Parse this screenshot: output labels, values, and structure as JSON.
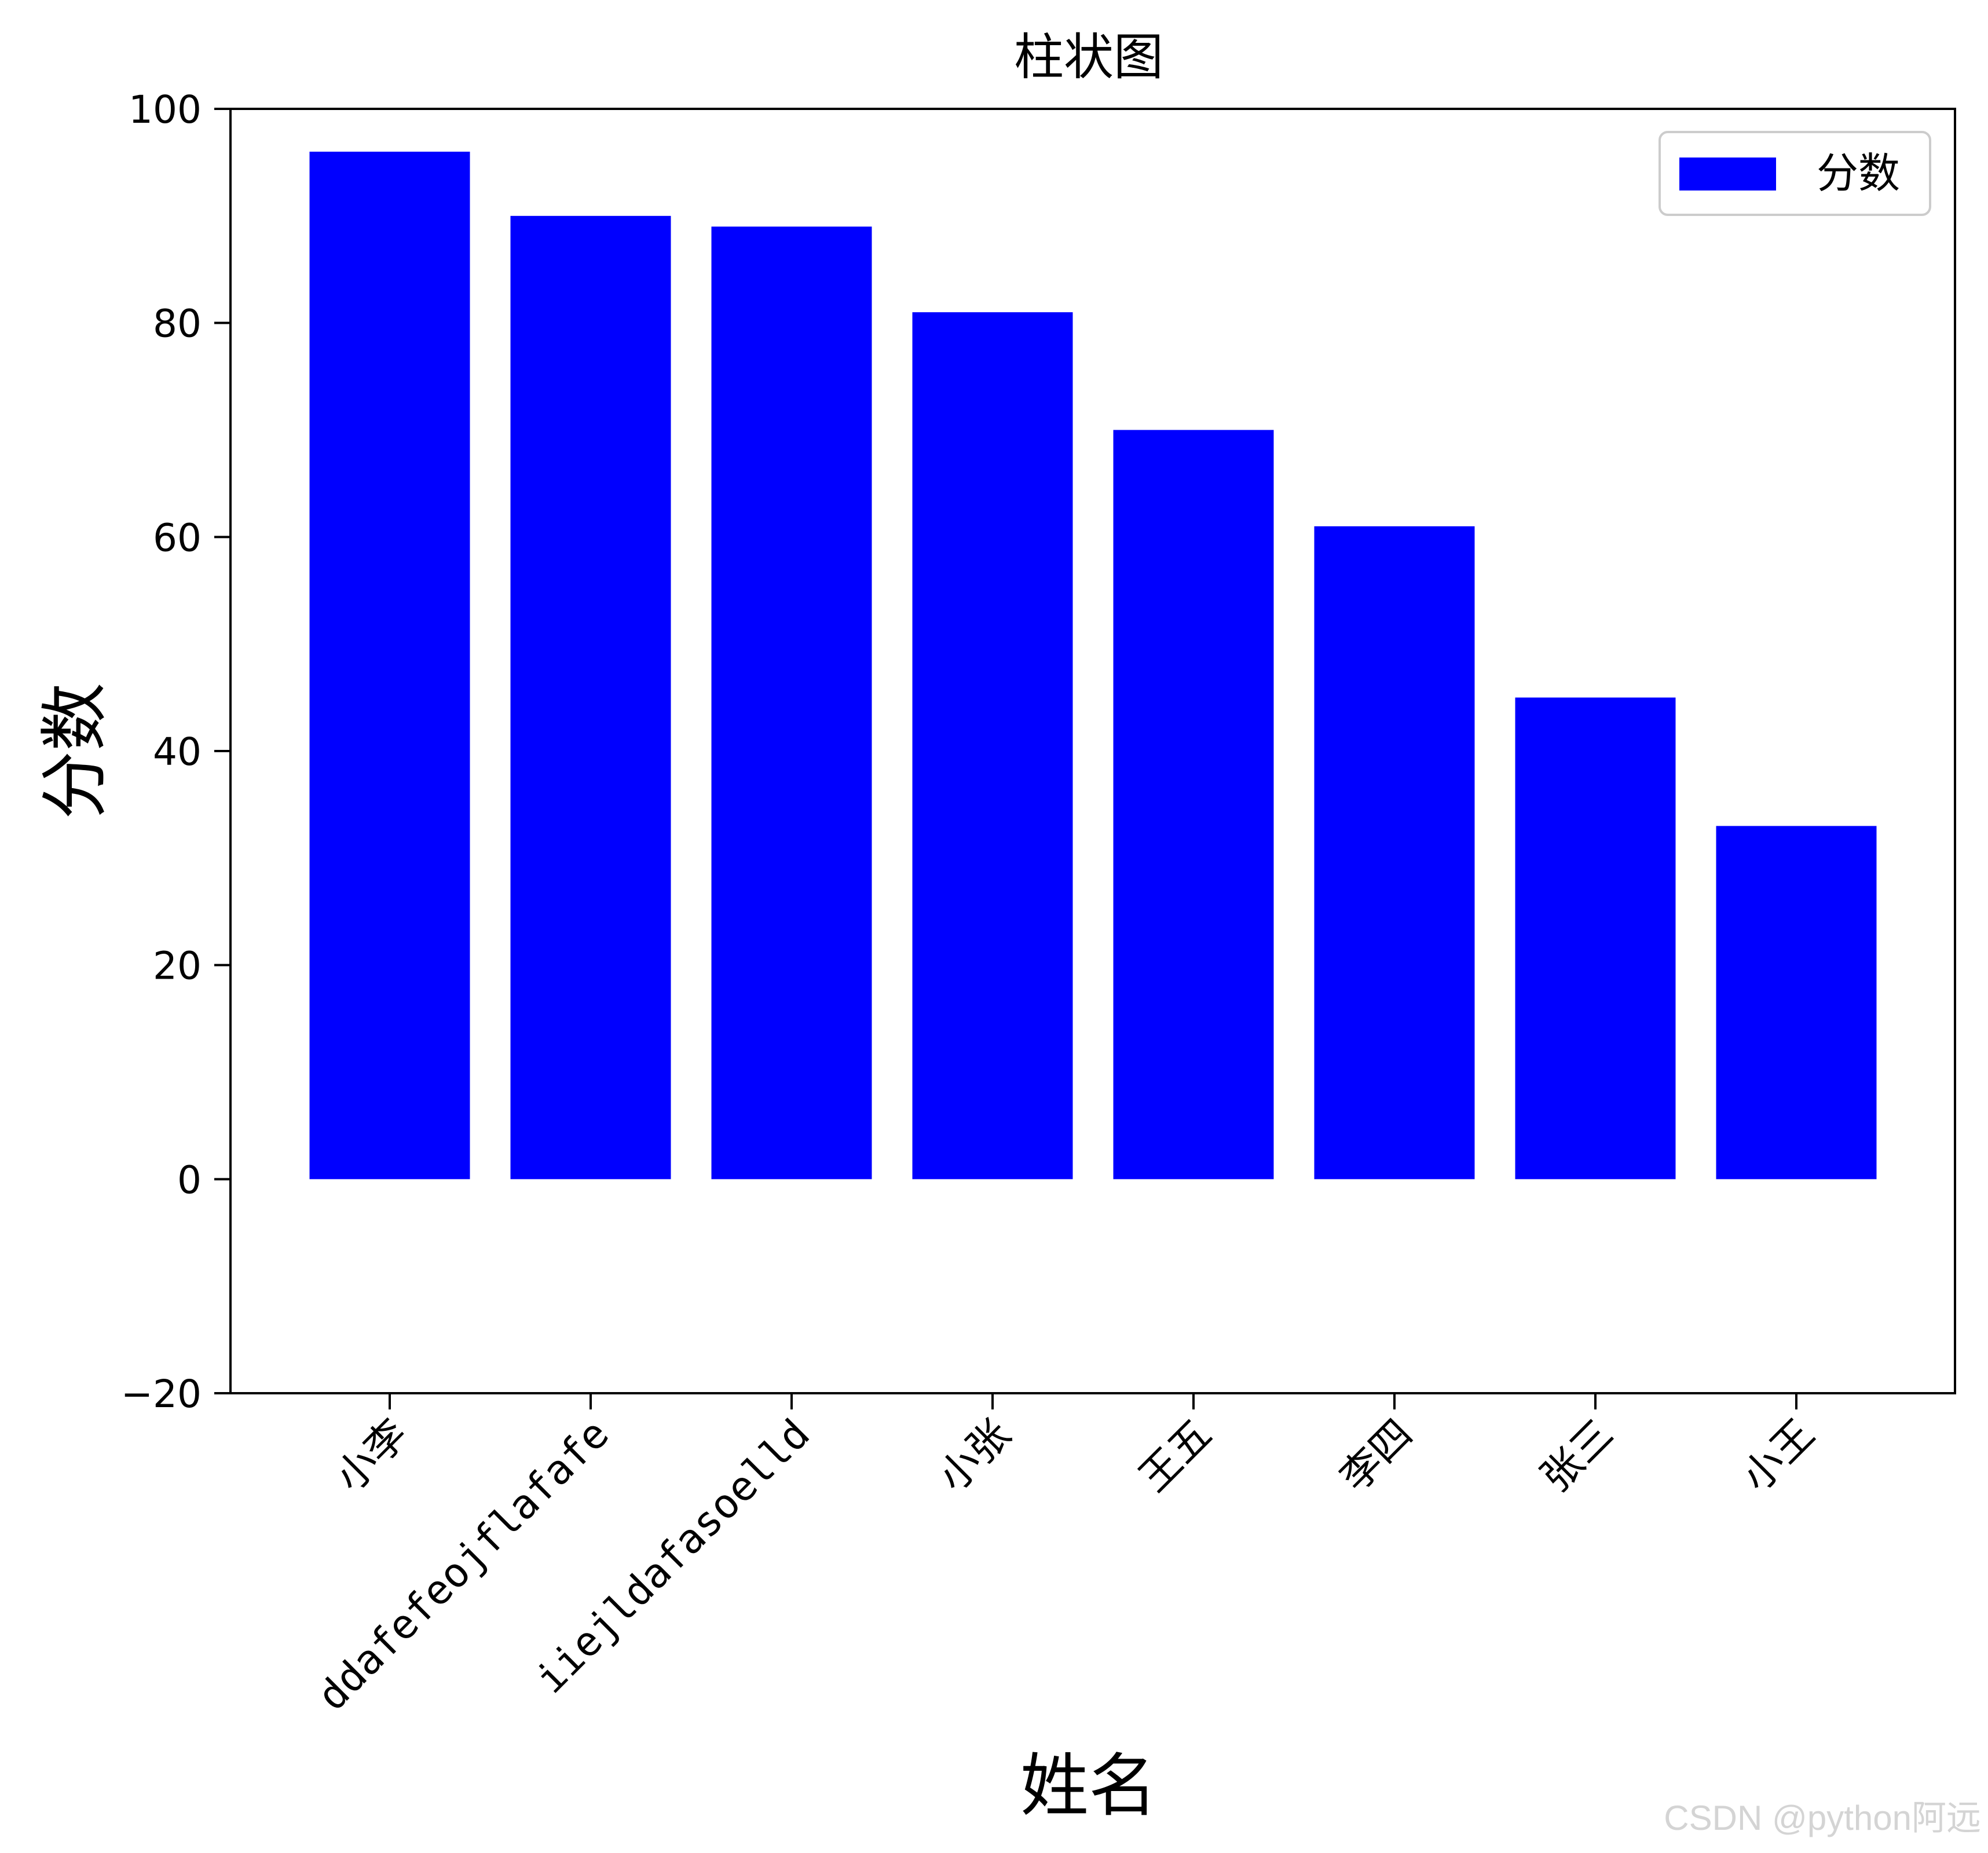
{
  "chart_data": {
    "type": "bar",
    "title": "柱状图",
    "xlabel": "姓名",
    "ylabel": "分数",
    "categories": [
      "小李",
      "ddafefeojflafafe",
      "iiejldafasoelld",
      "小张",
      "王五",
      "李四",
      "张三",
      "小王"
    ],
    "series": [
      {
        "name": "分数",
        "values": [
          96,
          90,
          89,
          81,
          70,
          61,
          45,
          33
        ]
      }
    ],
    "ylim": [
      -20,
      100
    ],
    "yticks": [
      "−20",
      "0",
      "20",
      "40",
      "60",
      "80",
      "100"
    ],
    "grid": false,
    "legend_position": "upper-right",
    "bar_color": "#0000ff",
    "xtick_rotation_deg": 45
  },
  "watermark": "CSDN @python阿远"
}
